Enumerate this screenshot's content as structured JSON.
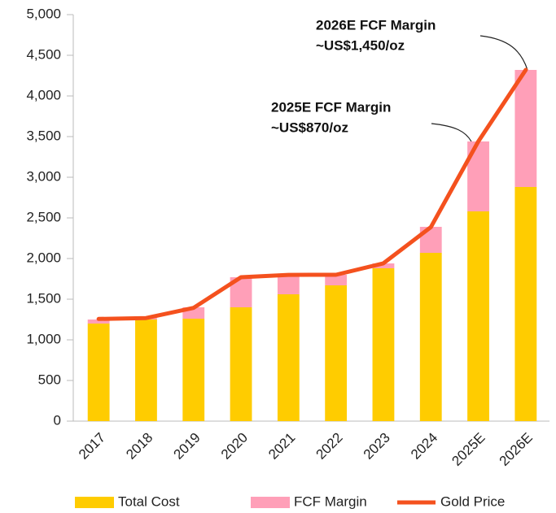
{
  "chart_data": {
    "type": "stacked-bar-line",
    "categories": [
      "2017",
      "2018",
      "2019",
      "2020",
      "2021",
      "2022",
      "2023",
      "2024",
      "2025E",
      "2026E"
    ],
    "series": [
      {
        "name": "Total Cost",
        "color": "#ffcc00",
        "kind": "bar",
        "values": [
          1200,
          1250,
          1260,
          1400,
          1560,
          1670,
          1880,
          2070,
          2580,
          2880
        ]
      },
      {
        "name": "FCF Margin",
        "color": "#ff9fb8",
        "kind": "bar",
        "values": [
          50,
          20,
          140,
          370,
          220,
          130,
          60,
          320,
          860,
          1440
        ]
      },
      {
        "name": "Gold Price",
        "color": "#f4511e",
        "kind": "line",
        "values": [
          1257,
          1268,
          1393,
          1770,
          1799,
          1800,
          1941,
          2386,
          3440,
          4320
        ]
      }
    ],
    "ylim": [
      0,
      5000
    ],
    "yticks": [
      0,
      500,
      {
        "value": 1000,
        "label": "1,000"
      },
      {
        "value": 1500,
        "label": "1,500"
      },
      {
        "value": 2000,
        "label": "2,000"
      },
      {
        "value": 2500,
        "label": "2,500"
      },
      {
        "value": 3000,
        "label": "3,000"
      },
      {
        "value": 3500,
        "label": "3,500"
      },
      {
        "value": 4000,
        "label": "4,000"
      },
      {
        "value": 4500,
        "label": "4,500"
      },
      {
        "value": 5000,
        "label": "5,000"
      }
    ],
    "annotations": [
      {
        "lines": [
          "2026E FCF Margin",
          "~US$1,450/oz"
        ]
      },
      {
        "lines": [
          "2025E FCF Margin",
          "~US$870/oz"
        ]
      }
    ],
    "legend": "bottom"
  }
}
